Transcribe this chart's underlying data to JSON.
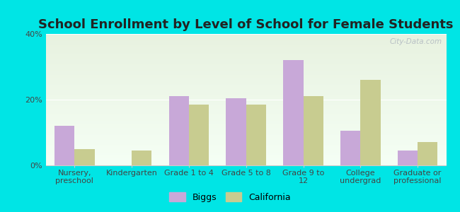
{
  "title": "School Enrollment by Level of School for Female Students",
  "categories": [
    "Nursery,\npreschool",
    "Kindergarten",
    "Grade 1 to 4",
    "Grade 5 to 8",
    "Grade 9 to\n12",
    "College\nundergrad",
    "Graduate or\nprofessional"
  ],
  "biggs": [
    12,
    0,
    21,
    20.5,
    32,
    10.5,
    4.5
  ],
  "california": [
    5,
    4.5,
    18.5,
    18.5,
    21,
    26,
    7
  ],
  "biggs_color": "#c8a8d8",
  "california_color": "#c8cc90",
  "background_color": "#00e5e5",
  "ylim": [
    0,
    40
  ],
  "yticks": [
    0,
    20,
    40
  ],
  "ytick_labels": [
    "0%",
    "20%",
    "40%"
  ],
  "title_fontsize": 13,
  "tick_fontsize": 8,
  "legend_fontsize": 9,
  "bar_width": 0.35,
  "watermark": "City-Data.com"
}
